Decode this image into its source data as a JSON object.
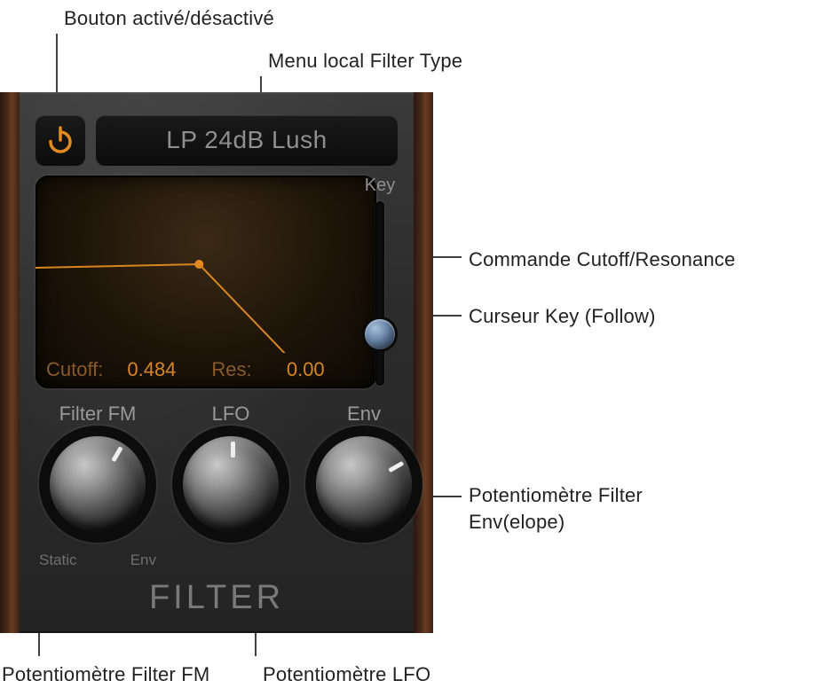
{
  "callouts": {
    "power": "Bouton activé/désactivé",
    "menu": "Menu local Filter Type",
    "cutoffRes": "Commande Cutoff/Resonance",
    "keySlider": "Curseur Key (Follow)",
    "envKnob": "Potentiomètre Filter Env(elope)",
    "envKnob2": "",
    "fmKnob": "Potentiomètre Filter FM",
    "lfoKnob": "Potentiomètre LFO"
  },
  "colors": {
    "accent": "#e28a1f",
    "wood_dark": "#3a2215",
    "panel_bg": "#2e2e2e",
    "display_bg": "#1d1408",
    "readout_label": "#8a5a2a",
    "readout_value": "#d9861e",
    "text_dim": "#8f8f8f"
  },
  "top": {
    "power_on": true,
    "filter_type": "LP 24dB Lush"
  },
  "display": {
    "cutoff_label": "Cutoff:",
    "cutoff_value": "0.484",
    "res_label": "Res:",
    "res_value": "0.00",
    "curve": {
      "type": "lowpass",
      "cutoff_x": 0.48,
      "node_y": 0.5,
      "flat_y": 0.52,
      "line_color": "#d9861e",
      "line_width": 2
    }
  },
  "key": {
    "label": "Key",
    "value": 0.28
  },
  "knobs": {
    "fm": {
      "title": "Filter FM",
      "angle": 30,
      "sub_left": "Static",
      "sub_right": "Env"
    },
    "lfo": {
      "title": "LFO",
      "angle": 0
    },
    "env": {
      "title": "Env",
      "angle": 60
    }
  },
  "section_title": "FILTER"
}
